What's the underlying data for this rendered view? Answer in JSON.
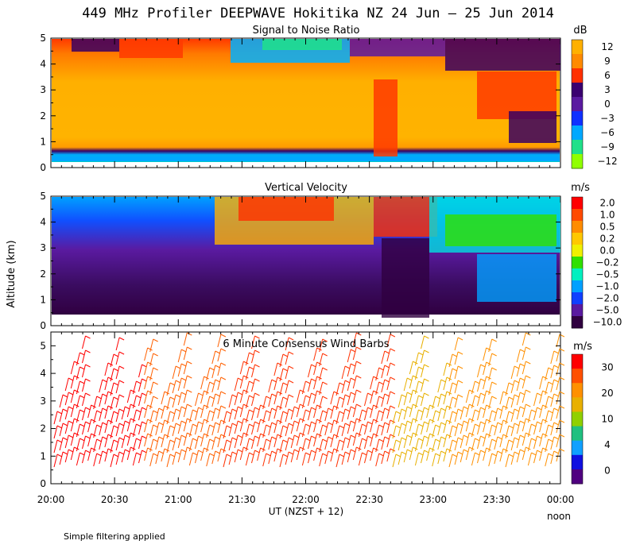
{
  "title": "449 MHz Profiler DEEPWAVE Hokitika NZ 24 Jun – 25 Jun 2014",
  "ylabel": "Altitude (km)",
  "xlabel": "UT  (NZST + 12)",
  "x_extra_label": "noon",
  "footnote": "Simple filtering applied",
  "x_ticks": [
    "20:00",
    "20:30",
    "21:00",
    "21:30",
    "22:00",
    "22:30",
    "23:00",
    "23:30",
    "00:00"
  ],
  "chart_data": [
    {
      "type": "heatmap",
      "title": "Signal to Noise Ratio",
      "x_range": [
        "20:00",
        "00:00"
      ],
      "ylim": [
        0,
        5
      ],
      "y_ticks": [
        "0",
        "1",
        "2",
        "3",
        "4",
        "5"
      ],
      "colorbar": {
        "unit": "dB",
        "labels": [
          "12",
          "9",
          "6",
          "3",
          "0",
          "−3",
          "−6",
          "−9",
          "−12"
        ],
        "colors": [
          "#ffb000",
          "#ff8a00",
          "#ff3000",
          "#3a0070",
          "#5a1aa0",
          "#1030ff",
          "#00a8ff",
          "#20e08a",
          "#90ff00"
        ]
      }
    },
    {
      "type": "heatmap",
      "title": "Vertical Velocity",
      "x_range": [
        "20:00",
        "00:00"
      ],
      "ylim": [
        0,
        5
      ],
      "y_ticks": [
        "0",
        "1",
        "2",
        "3",
        "4",
        "5"
      ],
      "colorbar": {
        "unit": "m/s",
        "labels": [
          "2.0",
          "1.0",
          "0.5",
          "0.2",
          "0.0",
          "−0.2",
          "−0.5",
          "−1.0",
          "−2.0",
          "−5.0",
          "−10.0"
        ],
        "colors": [
          "#ff0000",
          "#ff4a00",
          "#ff8c00",
          "#ffc800",
          "#f0f000",
          "#30e000",
          "#00f0c0",
          "#00a0ff",
          "#1040ff",
          "#5a1aa0",
          "#300040"
        ]
      }
    },
    {
      "type": "scatter",
      "title": "6 Minute Consensus Wind Barbs",
      "x_range": [
        "20:00",
        "00:00"
      ],
      "ylim": [
        0,
        5.5
      ],
      "y_ticks": [
        "0",
        "1",
        "2",
        "3",
        "4",
        "5"
      ],
      "colorbar": {
        "unit": "m/s",
        "labels": [
          "30",
          "20",
          "10",
          "4",
          "0"
        ],
        "colors": [
          "#ff0000",
          "#ff5000",
          "#ff9000",
          "#e8b000",
          "#90d000",
          "#20c080",
          "#10a0ff",
          "#1010e0",
          "#500080"
        ]
      }
    }
  ]
}
